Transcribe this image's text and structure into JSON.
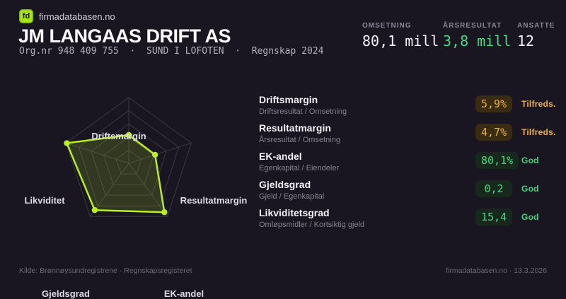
{
  "brand": {
    "logo_text": "fd",
    "name": "firmadatabasen.no"
  },
  "header": {
    "title": "JM LANGAAS DRIFT AS",
    "subtitle": "Org.nr 948 409 755  ·  SUND I LOFOTEN  ·  Regnskap 2024"
  },
  "stats": [
    {
      "label": "OMSETNING",
      "value": "80,1 mill"
    },
    {
      "label": "ÅRSRESULTAT",
      "value": "3,8 mill"
    },
    {
      "label": "ANSATTE",
      "value": "12"
    }
  ],
  "chart_data": {
    "type": "radar",
    "categories": [
      "Driftsmargin",
      "Resultatmargin",
      "EK-andel",
      "Gjeldsgrad",
      "Likviditet"
    ],
    "values": [
      0.43,
      0.42,
      0.92,
      0.88,
      0.99
    ],
    "max": 1,
    "rings": 5,
    "legend": "none",
    "grid": true,
    "colors": {
      "stroke": "#b9ef20",
      "fill": "#b9ef20",
      "fill_opacity": 0.16,
      "grid_line": "#3a3748"
    }
  },
  "metrics": {
    "rows": [
      {
        "name": "Driftsmargin",
        "formula": "Driftsresultat / Omsetning",
        "value": "5,9%",
        "rating": "Tilfreds.",
        "status": "warn"
      },
      {
        "name": "Resultatmargin",
        "formula": "Årsresultat / Omsetning",
        "value": "4,7%",
        "rating": "Tilfreds.",
        "status": "warn"
      },
      {
        "name": "EK-andel",
        "formula": "Egenkapital / Eiendeler",
        "value": "80,1%",
        "rating": "God",
        "status": "good"
      },
      {
        "name": "Gjeldsgrad",
        "formula": "Gjeld / Egenkapital",
        "value": "0,2",
        "rating": "God",
        "status": "good"
      },
      {
        "name": "Likviditetsgrad",
        "formula": "Omløpsmidler / Kortsiktig gjeld",
        "value": "15,4",
        "rating": "God",
        "status": "good"
      }
    ]
  },
  "footer": {
    "left": "Kilde: Brønnøysundregistrene · Regnskapsregisteret",
    "right": "firmadatabasen.no · 13.3.2026"
  },
  "colors": {
    "background": "#1a1621",
    "accent_lime": "#b9ef20",
    "logo_green": "#a4e615",
    "good_green": "#43d97e",
    "warn_amber": "#f0b13c",
    "positive_value_green": "#45db81"
  }
}
